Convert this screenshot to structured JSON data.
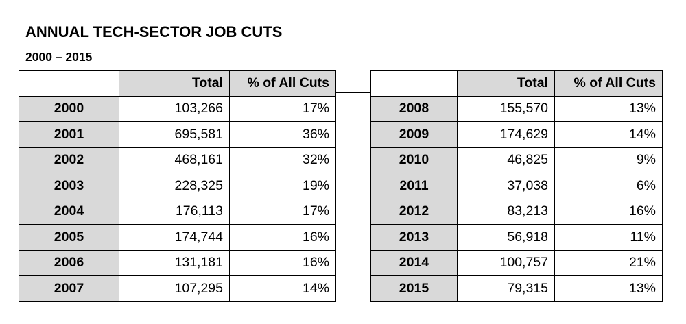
{
  "title": "ANNUAL TECH-SECTOR JOB CUTS",
  "subtitle": "2000 – 2015",
  "columns": {
    "total": "Total",
    "pct": "% of All Cuts"
  },
  "left_rows": [
    {
      "year": "2000",
      "total": "103,266",
      "pct": "17%"
    },
    {
      "year": "2001",
      "total": "695,581",
      "pct": "36%"
    },
    {
      "year": "2002",
      "total": "468,161",
      "pct": "32%"
    },
    {
      "year": "2003",
      "total": "228,325",
      "pct": "19%"
    },
    {
      "year": "2004",
      "total": "176,113",
      "pct": "17%"
    },
    {
      "year": "2005",
      "total": "174,744",
      "pct": "16%"
    },
    {
      "year": "2006",
      "total": "131,181",
      "pct": "16%"
    },
    {
      "year": "2007",
      "total": "107,295",
      "pct": "14%"
    }
  ],
  "right_rows": [
    {
      "year": "2008",
      "total": "155,570",
      "pct": "13%"
    },
    {
      "year": "2009",
      "total": "174,629",
      "pct": "14%"
    },
    {
      "year": "2010",
      "total": "46,825",
      "pct": "9%"
    },
    {
      "year": "2011",
      "total": "37,038",
      "pct": "6%"
    },
    {
      "year": "2012",
      "total": "83,213",
      "pct": "16%"
    },
    {
      "year": "2013",
      "total": "56,918",
      "pct": "11%"
    },
    {
      "year": "2014",
      "total": "100,757",
      "pct": "21%"
    },
    {
      "year": "2015",
      "total": "79,315",
      "pct": "13%"
    }
  ]
}
